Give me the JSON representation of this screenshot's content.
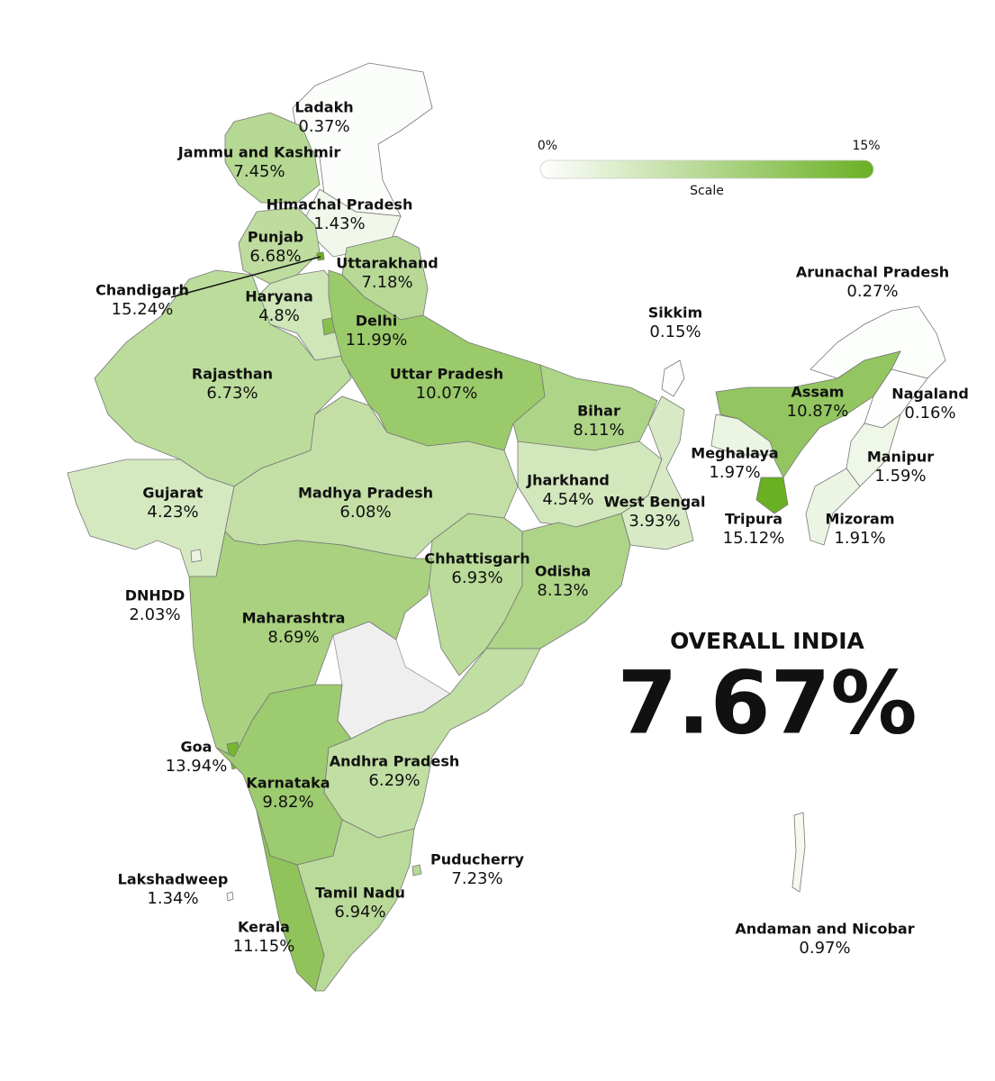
{
  "chart_data": {
    "type": "choropleth",
    "categories": [
      "Ladakh",
      "Jammu and Kashmir",
      "Himachal Pradesh",
      "Punjab",
      "Uttarakhand",
      "Chandigarh",
      "Haryana",
      "Delhi",
      "Rajasthan",
      "Uttar Pradesh",
      "Bihar",
      "Sikkim",
      "Arunachal Pradesh",
      "Assam",
      "Nagaland",
      "Meghalaya",
      "Manipur",
      "Tripura",
      "Mizoram",
      "Jharkhand",
      "West Bengal",
      "Gujarat",
      "Madhya Pradesh",
      "Chhattisgarh",
      "Odisha",
      "DNHDD",
      "Maharashtra",
      "Goa",
      "Karnataka",
      "Andhra Pradesh",
      "Puducherry",
      "Lakshadweep",
      "Tamil Nadu",
      "Kerala",
      "Andaman and Nicobar"
    ],
    "values": [
      0.37,
      7.45,
      1.43,
      6.68,
      7.18,
      15.24,
      4.8,
      11.99,
      6.73,
      10.07,
      8.11,
      0.15,
      0.27,
      10.87,
      0.16,
      1.97,
      1.59,
      15.12,
      1.91,
      4.54,
      3.93,
      4.23,
      6.08,
      6.93,
      8.13,
      2.03,
      8.69,
      13.94,
      9.82,
      6.29,
      7.23,
      1.34,
      6.94,
      11.15,
      0.97
    ],
    "value_labels": [
      "0.37%",
      "7.45%",
      "1.43%",
      "6.68%",
      "7.18%",
      "15.24%",
      "4.8%",
      "11.99%",
      "6.73%",
      "10.07%",
      "8.11%",
      "0.15%",
      "0.27%",
      "10.87%",
      "0.16%",
      "1.97%",
      "1.59%",
      "15.12%",
      "1.91%",
      "4.54%",
      "3.93%",
      "4.23%",
      "6.08%",
      "6.93%",
      "8.13%",
      "2.03%",
      "8.69%",
      "13.94%",
      "9.82%",
      "6.29%",
      "7.23%",
      "1.34%",
      "6.94%",
      "11.15%",
      "0.97%"
    ],
    "clim": [
      0,
      15
    ],
    "colors": [
      "#ffffff",
      "#6ab023"
    ],
    "colorbar_title": "Scale",
    "colorbar_ticks": [
      {
        "value": 0,
        "label": "0%"
      },
      {
        "value": 15,
        "label": "15%"
      }
    ],
    "summary_label": "OVERALL INDIA",
    "summary_value": 7.67,
    "summary_value_label": "7.67%"
  }
}
